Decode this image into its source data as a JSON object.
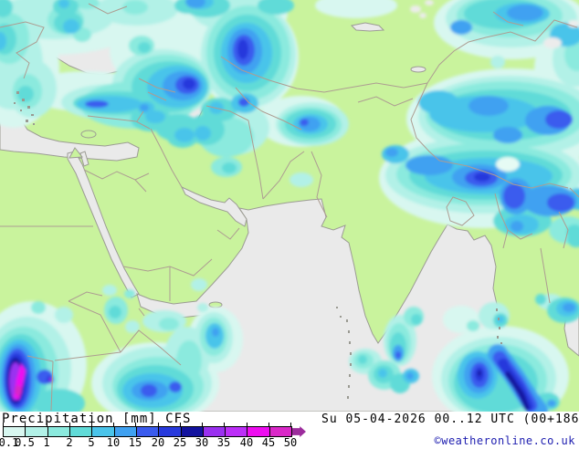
{
  "legend": {
    "title": "Precipitation [mm] CFS",
    "datetime": "Su 05-04-2026 00..12 UTC (00+186)",
    "copyright": "©weatheronline.co.uk",
    "scale": {
      "labels": [
        "0.1",
        "0.5",
        "1",
        "2",
        "5",
        "10",
        "15",
        "20",
        "25",
        "30",
        "35",
        "40",
        "45",
        "50"
      ],
      "segment_colors": [
        "#d8f7f0",
        "#b2f1e7",
        "#8beade",
        "#60dbd8",
        "#4ac4ea",
        "#3fa1f1",
        "#3a5bee",
        "#2739dc",
        "#12129e",
        "#9a30f0",
        "#bc2ef8",
        "#ee0cf0",
        "#da28c8"
      ],
      "arrow_color": "#9c2c9c"
    }
  },
  "map": {
    "land_color": "#c9f39d",
    "sea_color": "#eaeaea",
    "coast_color": "#9c9c94",
    "border_color": "#ad9d92",
    "copyright_text_color": "#1c1caf"
  }
}
